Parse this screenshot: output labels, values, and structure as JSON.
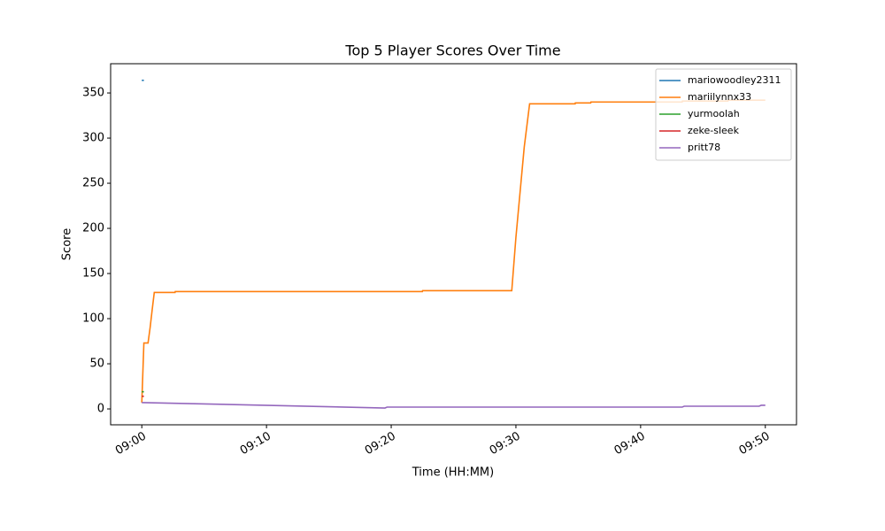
{
  "chart_data": {
    "type": "line",
    "title": "Top 5 Player Scores Over Time",
    "x_label": "Time (HH:MM)",
    "y_label": "Score",
    "xlim": [
      "08:57:30",
      "09:52:30"
    ],
    "xticks": [
      "09:00",
      "09:10",
      "09:20",
      "09:30",
      "09:40",
      "09:50"
    ],
    "ylim": [
      -17.6,
      382.4
    ],
    "yticks": [
      0,
      50,
      100,
      150,
      200,
      250,
      300,
      350
    ],
    "grid": false,
    "legend": "upper right",
    "series": [
      {
        "name": "mariowoodley2311",
        "color": "#1f77b4",
        "x": [
          "09:00:00",
          "09:00:10"
        ],
        "values": [
          364,
          364
        ]
      },
      {
        "name": "mariilynnx33",
        "color": "#ff7f0e",
        "x": [
          "09:00:00",
          "09:00:10",
          "09:00:30",
          "09:00:40",
          "09:00:50",
          "09:01:00",
          "09:02:40",
          "09:02:41",
          "09:22:30",
          "09:22:31",
          "09:29:40",
          "09:30:00",
          "09:30:40",
          "09:31:06",
          "09:34:45",
          "09:34:46",
          "09:36:00",
          "09:36:01",
          "09:43:20",
          "09:43:21",
          "09:47:00",
          "09:47:01",
          "09:50:00"
        ],
        "values": [
          7,
          73,
          73,
          90,
          110,
          129,
          129,
          130,
          130,
          131,
          131,
          190,
          290,
          338,
          338,
          339,
          339,
          340,
          340,
          341,
          341,
          342,
          342
        ]
      },
      {
        "name": "yurmoolah",
        "color": "#2ca02c",
        "x": [
          "09:00:00",
          "09:00:10"
        ],
        "values": [
          19,
          19
        ]
      },
      {
        "name": "zeke-sleek",
        "color": "#d62728",
        "x": [
          "09:00:00",
          "09:00:10"
        ],
        "values": [
          14,
          14
        ]
      },
      {
        "name": "pritt78",
        "color": "#9467bd",
        "x": [
          "09:00:00",
          "09:00:10",
          "09:19:30",
          "09:19:40",
          "09:43:20",
          "09:43:30",
          "09:49:30",
          "09:49:40",
          "09:50:00"
        ],
        "values": [
          7,
          7,
          1,
          2,
          2,
          3,
          3,
          4,
          4
        ]
      }
    ]
  }
}
